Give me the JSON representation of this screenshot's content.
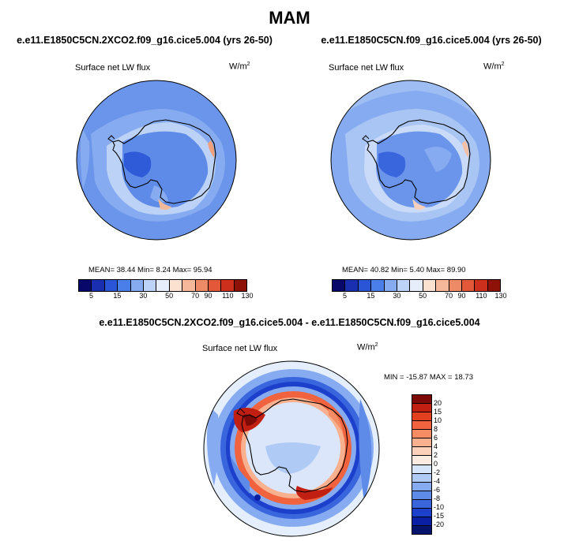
{
  "title": "MAM",
  "panels": [
    {
      "case": "e.e11.E1850C5CN.2XCO2.f09_g16.cice5.004 (yrs 26-50)",
      "variable": "Surface net LW flux",
      "units": "W/m",
      "units_sup": "2",
      "stats": "MEAN=  38.44  Min=   8.24  Max=  95.94"
    },
    {
      "case": "e.e11.E1850C5CN.f09_g16.cice5.004 (yrs 26-50)",
      "variable": "Surface net LW flux",
      "units": "W/m",
      "units_sup": "2",
      "stats": "MEAN=  40.82  Min=   5.40  Max=  89.90"
    }
  ],
  "diff": {
    "case": "e.e11.E1850C5CN.2XCO2.f09_g16.cice5.004 - e.e11.E1850C5CN.f09_g16.cice5.004",
    "variable": "Surface net LW flux",
    "units": "W/m",
    "units_sup": "2",
    "stats": "MIN = -15.87 MAX =  18.73"
  },
  "colorbar_top": {
    "labels": [
      "5",
      "15",
      "30",
      "50",
      "70",
      "90",
      "110",
      "130"
    ],
    "colors": [
      "#08086b",
      "#1a2fb0",
      "#2a55d6",
      "#4a7ee8",
      "#86abf0",
      "#bdd3f7",
      "#e6eefc",
      "#fbe2d0",
      "#f5b89a",
      "#ef8a66",
      "#e4583a",
      "#cc2f1c",
      "#8f1208"
    ]
  },
  "colorbar_diff": {
    "labels": [
      "20",
      "15",
      "10",
      "8",
      "6",
      "4",
      "2",
      "0",
      "-2",
      "-4",
      "-6",
      "-8",
      "-10",
      "-15",
      "-20"
    ],
    "colors": [
      "#7d0a06",
      "#c01f12",
      "#e3401f",
      "#f0633e",
      "#f58c63",
      "#f8b08f",
      "#fbd1bb",
      "#fcebe0",
      "#d6e5fa",
      "#aecaf5",
      "#86abf0",
      "#5f8be8",
      "#3a66dd",
      "#1c3fcc",
      "#0a1fa3",
      "#04136b"
    ]
  }
}
